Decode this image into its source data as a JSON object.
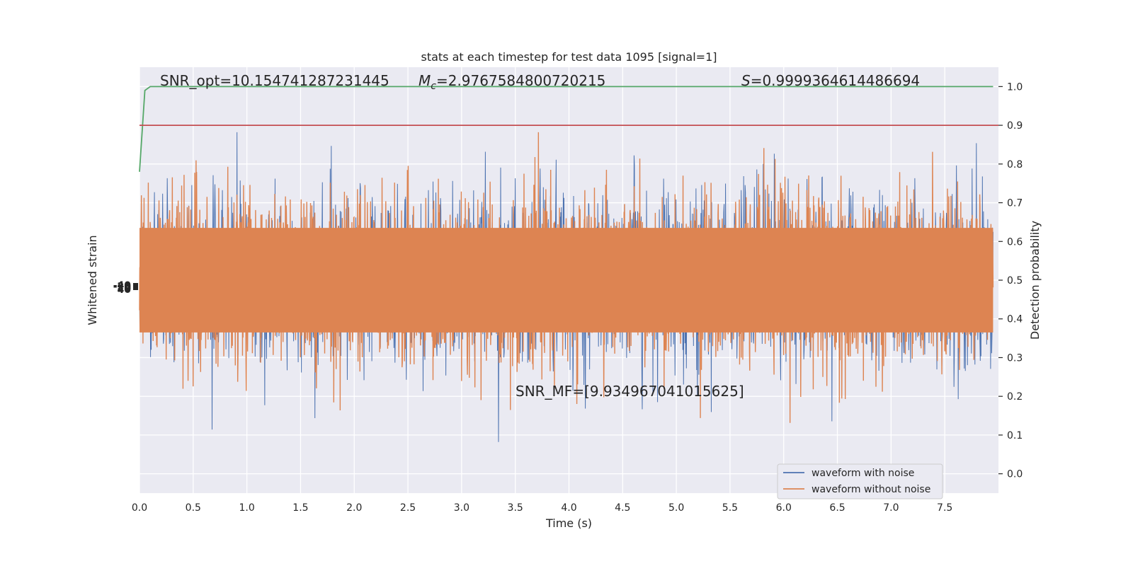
{
  "chart_data": {
    "type": "line",
    "title": "stats at each timestep for test data 1095 [signal=1]",
    "xlabel": "Time (s)",
    "ylabel_left": "Whitened strain",
    "ylabel_right": "Detection probability",
    "xlim": [
      0.0,
      8.0
    ],
    "ylim_right": [
      -0.05,
      1.05
    ],
    "grid": true,
    "x_ticks": [
      "0.0",
      "0.5",
      "1.0",
      "1.5",
      "2.0",
      "2.5",
      "3.0",
      "3.5",
      "4.0",
      "4.5",
      "5.0",
      "5.5",
      "6.0",
      "6.5",
      "7.0",
      "7.5"
    ],
    "y_right_ticks": [
      "0.0",
      "0.1",
      "0.2",
      "0.3",
      "0.4",
      "0.5",
      "0.6",
      "0.7",
      "0.8",
      "0.9",
      "1.0"
    ],
    "left_tick_labels": [
      "-40",
      "-20",
      "0",
      "20",
      "40"
    ],
    "annotations": {
      "snr_opt": "SNR_opt=10.154741287231445",
      "mc_symbol": "M",
      "mc_sub": "c",
      "mc_value": "=2.9767584800720215",
      "s_symbol": "S",
      "s_value": "=0.9999364614486694",
      "snr_mf": "SNR_MF=[9.934967041015625]"
    },
    "legend": {
      "position": "lower-right",
      "entries": [
        "waveform with noise",
        "waveform without noise"
      ]
    },
    "series": [
      {
        "name": "waveform with noise",
        "color": "#4c72b0",
        "note_values": "whitened noisy strain, spans approx 0.0-1.0 in right-axis scale"
      },
      {
        "name": "waveform without noise",
        "color": "#dd8452",
        "note_values": "whitened strain band centered at 0.5 (right-axis scale)"
      },
      {
        "name": "",
        "color": "#55a868",
        "x": [
          0.0,
          0.05,
          0.1,
          0.2,
          1.0,
          2.0,
          3.0,
          4.0,
          5.0,
          6.0,
          7.0,
          7.95
        ],
        "y": [
          0.78,
          0.99,
          1.0,
          1.0,
          1.0,
          1.0,
          1.0,
          1.0,
          1.0,
          1.0,
          1.0,
          1.0
        ]
      },
      {
        "name": "",
        "color": "#c44e52",
        "x": [
          0.0,
          8.0
        ],
        "y": [
          0.9,
          0.9
        ]
      }
    ],
    "colors": {
      "plot_bg": "#eaeaf2",
      "grid": "#ffffff",
      "noisy": "#4c72b0",
      "clean": "#dd8452",
      "prob": "#55a868",
      "threshold": "#c44e52"
    }
  }
}
